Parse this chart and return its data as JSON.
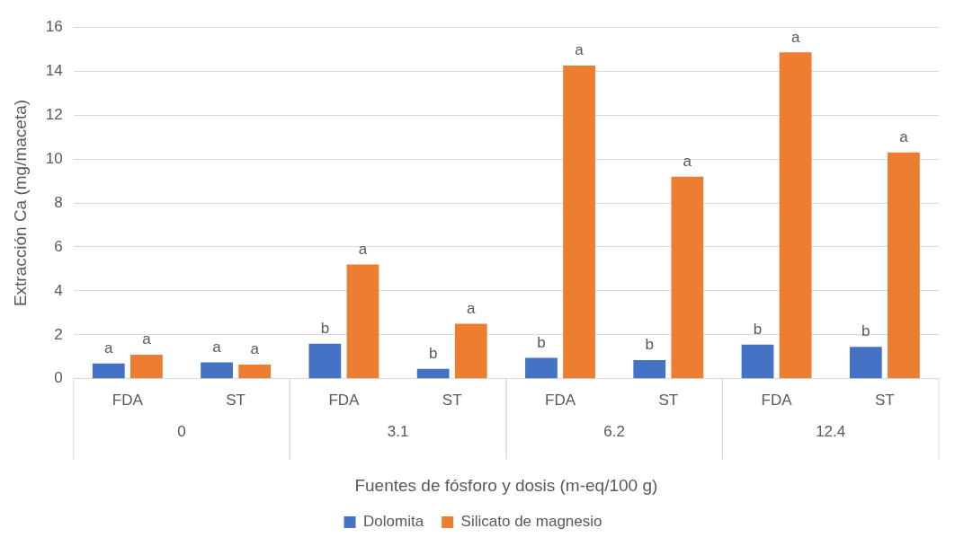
{
  "chart_data": {
    "type": "bar",
    "ylabel": "Extracción Ca (mg/maceta)",
    "xlabel": "Fuentes de fósforo y dosis (m-eq/100 g)",
    "categories": [
      "FDA",
      "ST",
      "FDA",
      "ST",
      "FDA",
      "ST",
      "FDA",
      "ST"
    ],
    "annotations": [
      "0",
      "3.1",
      "6.2",
      "12.4"
    ],
    "series": [
      {
        "name": "Dolomita",
        "color": "#4472c4",
        "values": [
          0.7,
          0.75,
          1.6,
          0.45,
          0.95,
          0.85,
          1.55,
          1.45
        ],
        "value_labels": [
          "a",
          "a",
          "b",
          "b",
          "b",
          "b",
          "b",
          "b"
        ]
      },
      {
        "name": "Silicato de magnesio",
        "color": "#ed7d31",
        "values": [
          1.1,
          0.65,
          5.2,
          2.5,
          14.25,
          9.2,
          14.85,
          10.3
        ],
        "value_labels": [
          "a",
          "a",
          "a",
          "a",
          "a",
          "a",
          "a",
          "a"
        ]
      }
    ],
    "ylim": [
      0,
      16
    ],
    "yticks": [
      0,
      2,
      4,
      6,
      8,
      10,
      12,
      14,
      16
    ],
    "grid": "y",
    "legend": "bottom"
  }
}
